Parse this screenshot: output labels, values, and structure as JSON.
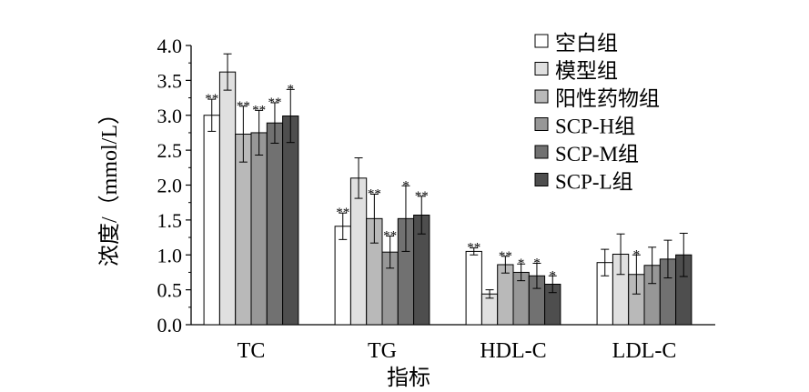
{
  "chart_data": {
    "type": "bar",
    "xlabel": "指标",
    "ylabel": "浓度/（mmol/L）",
    "ylim": [
      0,
      4
    ],
    "yticks": [
      "0.0",
      "0.5",
      "1.0",
      "1.5",
      "2.0",
      "2.5",
      "3.0",
      "3.5",
      "4.0"
    ],
    "categories": [
      "TC",
      "TG",
      "HDL-C",
      "LDL-C"
    ],
    "legend_position": "top-right",
    "grid": false,
    "series": [
      {
        "name": "空白组",
        "color": "#ffffff",
        "values": [
          3.0,
          1.41,
          1.05,
          0.89
        ],
        "errors": [
          0.23,
          0.19,
          0.05,
          0.19
        ],
        "marks": [
          "**",
          "**",
          "**",
          ""
        ]
      },
      {
        "name": "模型组",
        "color": "#e0e0e0",
        "values": [
          3.62,
          2.1,
          0.44,
          1.01
        ],
        "errors": [
          0.26,
          0.29,
          0.06,
          0.29
        ],
        "marks": [
          "",
          "",
          "",
          ""
        ]
      },
      {
        "name": "阳性药物组",
        "color": "#b9b9b9",
        "values": [
          2.73,
          1.52,
          0.86,
          0.72
        ],
        "errors": [
          0.4,
          0.35,
          0.12,
          0.28
        ],
        "marks": [
          "**",
          "**",
          "**",
          "*"
        ]
      },
      {
        "name": "SCP-H组",
        "color": "#979797",
        "values": [
          2.75,
          1.04,
          0.75,
          0.85
        ],
        "errors": [
          0.32,
          0.23,
          0.12,
          0.26
        ],
        "marks": [
          "**",
          "**",
          "*",
          ""
        ]
      },
      {
        "name": "SCP-M组",
        "color": "#717171",
        "values": [
          2.89,
          1.52,
          0.7,
          0.94
        ],
        "errors": [
          0.29,
          0.47,
          0.18,
          0.27
        ],
        "marks": [
          "**",
          "*",
          "*",
          ""
        ]
      },
      {
        "name": "SCP-L组",
        "color": "#4e4e4e",
        "values": [
          2.99,
          1.57,
          0.58,
          1.0
        ],
        "errors": [
          0.38,
          0.27,
          0.12,
          0.31
        ],
        "marks": [
          "*",
          "**",
          "*",
          ""
        ]
      }
    ]
  }
}
